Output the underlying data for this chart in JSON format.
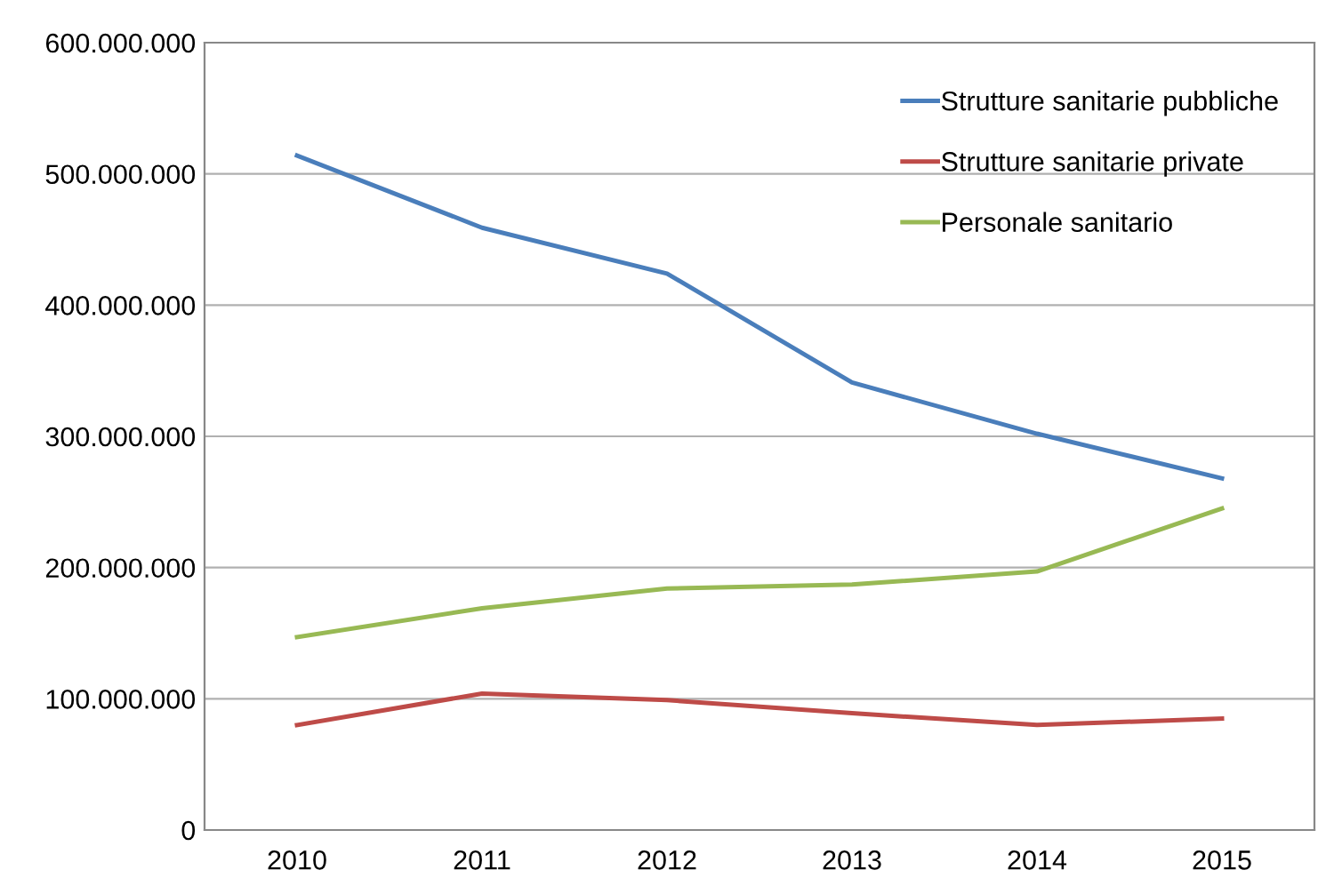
{
  "chart_data": {
    "type": "line",
    "categories": [
      "2010",
      "2011",
      "2012",
      "2013",
      "2014",
      "2015"
    ],
    "series": [
      {
        "name": "Strutture sanitarie pubbliche",
        "color": "#4a7ebb",
        "values": [
          514000000,
          459000000,
          424000000,
          341000000,
          302000000,
          268000000
        ]
      },
      {
        "name": "Strutture sanitarie private",
        "color": "#be4b48",
        "values": [
          80000000,
          104000000,
          99000000,
          89000000,
          80000000,
          85000000
        ]
      },
      {
        "name": "Personale sanitario",
        "color": "#98b954",
        "values": [
          147000000,
          169000000,
          184000000,
          187000000,
          197000000,
          245000000
        ]
      }
    ],
    "ylim": [
      0,
      600000000
    ],
    "yticks": [
      0,
      {
        "value": 100000000,
        "label": "100.000.000"
      },
      {
        "value": 200000000,
        "label": "200.000.000"
      },
      {
        "value": 300000000,
        "label": "300.000.000"
      },
      {
        "value": 400000000,
        "label": "400.000.000"
      },
      {
        "value": 500000000,
        "label": "500.000.000"
      },
      {
        "value": 600000000,
        "label": "600.000.000"
      }
    ],
    "grid": "y",
    "legend": "top right",
    "marker": "none",
    "line_style": "solid"
  }
}
